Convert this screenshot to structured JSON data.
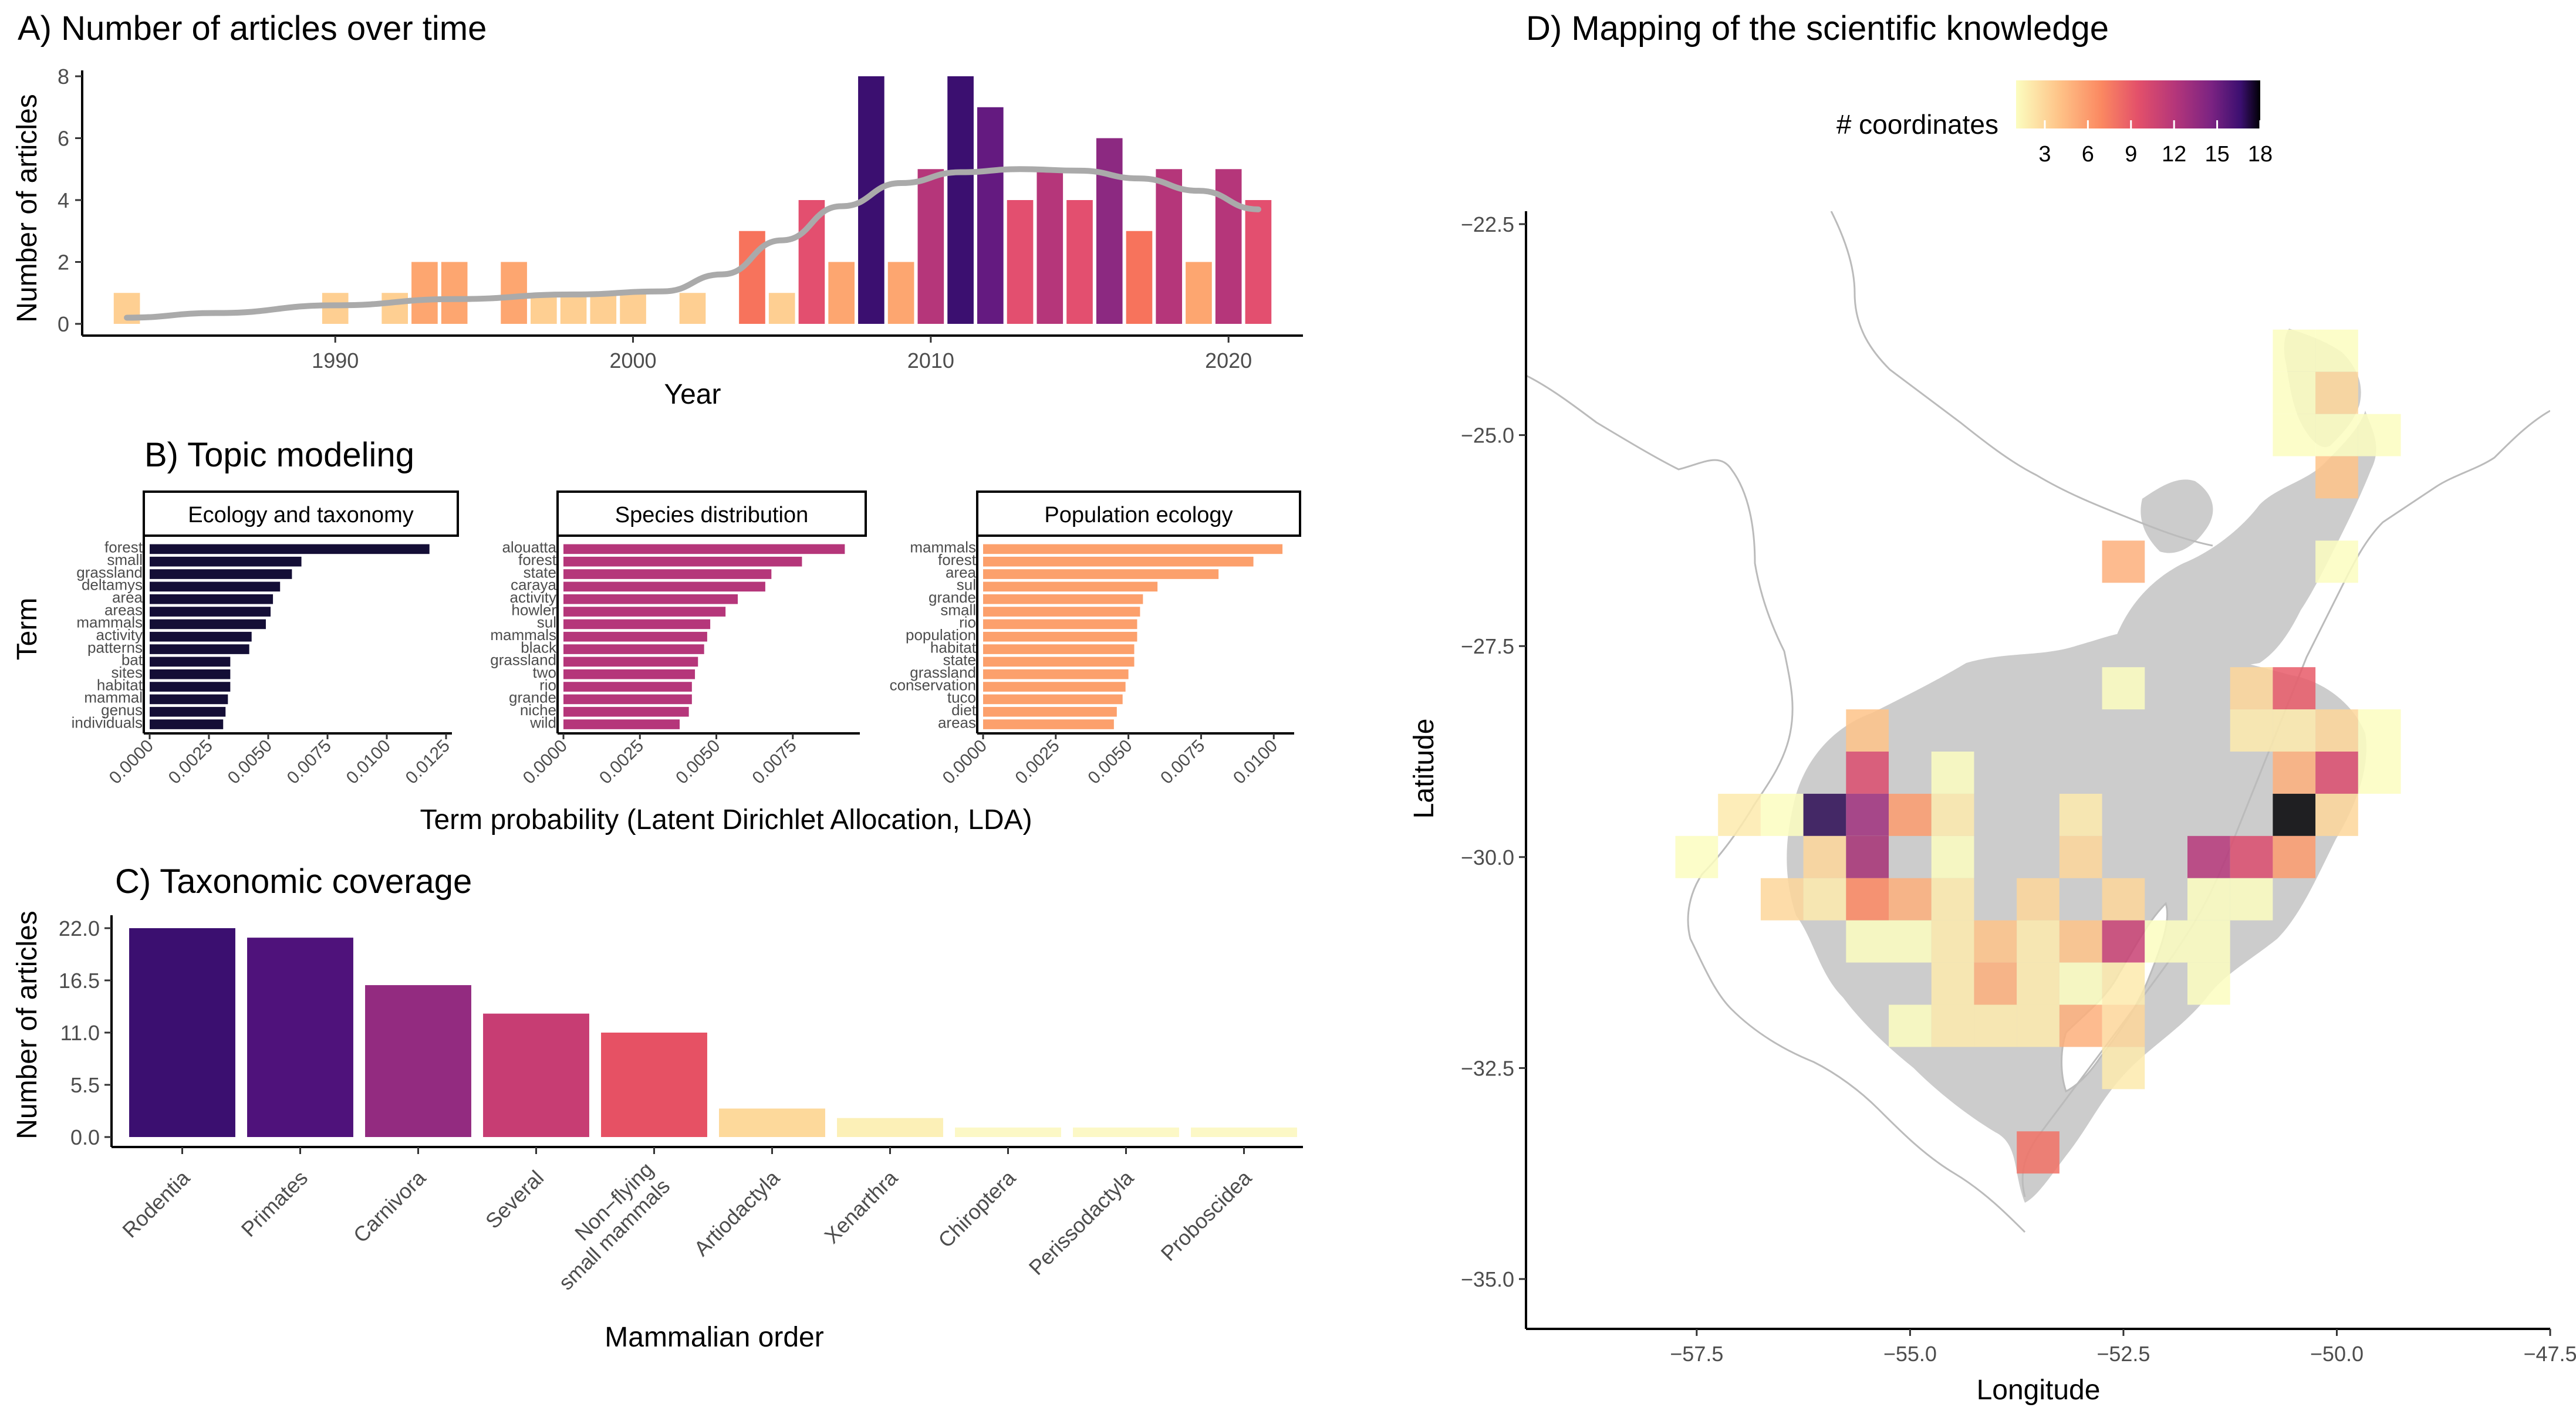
{
  "panels": {
    "A": {
      "title": "A) Number of articles over time",
      "chart_data": {
        "type": "bar",
        "xlabel": "Year",
        "ylabel": "Number of articles",
        "xlim": [
          1981.5,
          2022.5
        ],
        "ylim": [
          0,
          8
        ],
        "yticks": [
          0,
          2,
          4,
          6,
          8
        ],
        "xticks": [
          1990,
          2000,
          2010,
          2020
        ],
        "bars": [
          {
            "x": 1983,
            "y": 1,
            "color": "#FECF92"
          },
          {
            "x": 1990,
            "y": 1,
            "color": "#FECF92"
          },
          {
            "x": 1992,
            "y": 1,
            "color": "#FECF92"
          },
          {
            "x": 1993,
            "y": 2,
            "color": "#FDA670"
          },
          {
            "x": 1994,
            "y": 2,
            "color": "#FDA670"
          },
          {
            "x": 1996,
            "y": 2,
            "color": "#FDA670"
          },
          {
            "x": 1997,
            "y": 1,
            "color": "#FECF92"
          },
          {
            "x": 1998,
            "y": 1,
            "color": "#FECF92"
          },
          {
            "x": 1999,
            "y": 1,
            "color": "#FECF92"
          },
          {
            "x": 2000,
            "y": 1,
            "color": "#FECF92"
          },
          {
            "x": 2002,
            "y": 1,
            "color": "#FECF92"
          },
          {
            "x": 2004,
            "y": 3,
            "color": "#F7735C"
          },
          {
            "x": 2005,
            "y": 1,
            "color": "#FECF92"
          },
          {
            "x": 2006,
            "y": 4,
            "color": "#E34F6F"
          },
          {
            "x": 2007,
            "y": 2,
            "color": "#FDA670"
          },
          {
            "x": 2008,
            "y": 8,
            "color": "#3B0F70"
          },
          {
            "x": 2009,
            "y": 2,
            "color": "#FDA670"
          },
          {
            "x": 2010,
            "y": 5,
            "color": "#B5367A"
          },
          {
            "x": 2011,
            "y": 8,
            "color": "#3B0F70"
          },
          {
            "x": 2012,
            "y": 7,
            "color": "#641A80"
          },
          {
            "x": 2013,
            "y": 4,
            "color": "#E34F6F"
          },
          {
            "x": 2014,
            "y": 5,
            "color": "#B5367A"
          },
          {
            "x": 2015,
            "y": 4,
            "color": "#E34F6F"
          },
          {
            "x": 2016,
            "y": 6,
            "color": "#8C2981"
          },
          {
            "x": 2017,
            "y": 3,
            "color": "#F7735C"
          },
          {
            "x": 2018,
            "y": 5,
            "color": "#B5367A"
          },
          {
            "x": 2019,
            "y": 2,
            "color": "#FDA670"
          },
          {
            "x": 2020,
            "y": 5,
            "color": "#B5367A"
          },
          {
            "x": 2021,
            "y": 4,
            "color": "#E34F6F"
          }
        ],
        "trend": {
          "color": "#AAAAAA",
          "points": [
            [
              1983,
              0.2
            ],
            [
              1986,
              0.35
            ],
            [
              1990,
              0.6
            ],
            [
              1994,
              0.8
            ],
            [
              1998,
              0.95
            ],
            [
              2001,
              1.05
            ],
            [
              2003,
              1.6
            ],
            [
              2005,
              2.7
            ],
            [
              2007,
              3.8
            ],
            [
              2009,
              4.55
            ],
            [
              2011,
              4.9
            ],
            [
              2013,
              5.0
            ],
            [
              2015,
              4.95
            ],
            [
              2017,
              4.7
            ],
            [
              2019,
              4.3
            ],
            [
              2021,
              3.7
            ]
          ]
        }
      }
    },
    "B": {
      "title": "B) Topic modeling",
      "chart_data": {
        "type": "bar",
        "orientation": "horizontal",
        "xlabel": "Term probability (Latent Dirichlet Allocation, LDA)",
        "ylabel": "Term",
        "facets": [
          {
            "name": "Ecology and taxonomy",
            "color": "#140E36",
            "xlim": [
              0,
              0.0125
            ],
            "xticks": [
              "0.0000",
              "0.0025",
              "0.0050",
              "0.0075",
              "0.0100",
              "0.0125"
            ],
            "terms": [
              "forest",
              "small",
              "grassland",
              "deltamys",
              "area",
              "areas",
              "mammals",
              "activity",
              "patterns",
              "bat",
              "sites",
              "habitat",
              "mammal",
              "genus",
              "individuals"
            ],
            "values": [
              0.0118,
              0.0064,
              0.006,
              0.0055,
              0.0052,
              0.0051,
              0.0049,
              0.0043,
              0.0042,
              0.0034,
              0.0034,
              0.0034,
              0.0033,
              0.0032,
              0.0031
            ]
          },
          {
            "name": "Species distribution",
            "color": "#B5367A",
            "xlim": [
              0,
              0.0095
            ],
            "xticks": [
              "0.0000",
              "0.0025",
              "0.0050",
              "0.0075"
            ],
            "terms": [
              "alouatta",
              "forest",
              "state",
              "caraya",
              "activity",
              "howler",
              "sul",
              "mammals",
              "black",
              "grassland",
              "two",
              "rio",
              "grande",
              "niche",
              "wild"
            ],
            "values": [
              0.0092,
              0.0078,
              0.0068,
              0.0066,
              0.0057,
              0.0053,
              0.0048,
              0.0047,
              0.0046,
              0.0044,
              0.0043,
              0.0042,
              0.0042,
              0.0041,
              0.0038
            ]
          },
          {
            "name": "Population ecology",
            "color": "#FCA06C",
            "xlim": [
              0,
              0.0105
            ],
            "xticks": [
              "0.0000",
              "0.0025",
              "0.0050",
              "0.0075",
              "0.0100"
            ],
            "terms": [
              "mammals",
              "forest",
              "area",
              "sul",
              "grande",
              "small",
              "rio",
              "population",
              "habitat",
              "state",
              "grassland",
              "conservation",
              "tuco",
              "diet",
              "areas"
            ],
            "values": [
              0.0103,
              0.0093,
              0.0081,
              0.006,
              0.0055,
              0.0054,
              0.0053,
              0.0053,
              0.0052,
              0.0052,
              0.005,
              0.0049,
              0.0048,
              0.0046,
              0.0045
            ]
          }
        ]
      }
    },
    "C": {
      "title": "C) Taxonomic coverage",
      "chart_data": {
        "type": "bar",
        "xlabel": "Mammalian order",
        "ylabel": "Number of articles",
        "ylim": [
          0,
          22
        ],
        "yticks": [
          "0.0",
          "5.5",
          "11.0",
          "16.5",
          "22.0"
        ],
        "categories": [
          "Rodentia",
          "Primates",
          "Carnivora",
          "Several",
          "Non−flying|small mammals",
          "Artiodactyla",
          "Xenarthra",
          "Chiroptera",
          "Perissodactyla",
          "Proboscidea"
        ],
        "values": [
          22,
          21,
          16,
          13,
          11,
          3,
          2,
          1,
          1,
          1
        ],
        "colors": [
          "#3B0F70",
          "#4F127B",
          "#932B80",
          "#C73D73",
          "#E65164",
          "#FDD99B",
          "#FCF0B7",
          "#FCF8C6",
          "#FCF8C6",
          "#FCF8C6"
        ]
      }
    },
    "D": {
      "title": "D) Mapping of the scientific knowledge",
      "chart_data": {
        "type": "heatmap",
        "xlabel": "Longitude",
        "ylabel": "Latitude",
        "xlim": [
          -59.5,
          -47.5
        ],
        "ylim": [
          -35.6,
          -22.5
        ],
        "xticks": [
          "−57.5",
          "−55.0",
          "−52.5",
          "−50.0",
          "−47.5"
        ],
        "yticks": [
          "−22.5",
          "−25.0",
          "−27.5",
          "−30.0",
          "−32.5",
          "−35.0"
        ],
        "legend": {
          "title": "# coordinates",
          "ticks": [
            "3",
            "6",
            "9",
            "12",
            "15",
            "18"
          ],
          "placement": "top"
        },
        "cell_size_deg": 0.5,
        "cells": [
          [
            -50.5,
            -24,
            1
          ],
          [
            -50,
            -24,
            1
          ],
          [
            -50.5,
            -24.5,
            1
          ],
          [
            -50,
            -24.5,
            3
          ],
          [
            -50.5,
            -25,
            1
          ],
          [
            -50,
            -25,
            1
          ],
          [
            -49.5,
            -25,
            1
          ],
          [
            -50,
            -25.5,
            4
          ],
          [
            -50,
            -26.5,
            1
          ],
          [
            -52.5,
            -26.5,
            5
          ],
          [
            -52.5,
            -28,
            1
          ],
          [
            -51,
            -28,
            3
          ],
          [
            -50.5,
            -28,
            9
          ],
          [
            -55.5,
            -28.5,
            4
          ],
          [
            -51,
            -28.5,
            2
          ],
          [
            -50.5,
            -28.5,
            2
          ],
          [
            -50,
            -28.5,
            3
          ],
          [
            -49.5,
            -28.5,
            1
          ],
          [
            -55.5,
            -29,
            10
          ],
          [
            -54.5,
            -29,
            1
          ],
          [
            -50.5,
            -29,
            5
          ],
          [
            -50,
            -29,
            10
          ],
          [
            -49.5,
            -29,
            1
          ],
          [
            -57,
            -29.5,
            2
          ],
          [
            -56.5,
            -29.5,
            1
          ],
          [
            -56,
            -29.5,
            17
          ],
          [
            -55.5,
            -29.5,
            13
          ],
          [
            -55,
            -29.5,
            6
          ],
          [
            -54.5,
            -29.5,
            2
          ],
          [
            -53,
            -29.5,
            2
          ],
          [
            -50.5,
            -29.5,
            18
          ],
          [
            -50,
            -29.5,
            3
          ],
          [
            -57.5,
            -30,
            1
          ],
          [
            -55.5,
            -30,
            3
          ],
          [
            -56,
            -30,
            3
          ],
          [
            -55.5,
            -30,
            13
          ],
          [
            -54.5,
            -30,
            1
          ],
          [
            -53,
            -30,
            3
          ],
          [
            -51.5,
            -30,
            12
          ],
          [
            -51,
            -30,
            10
          ],
          [
            -50.5,
            -30,
            6
          ],
          [
            -56.5,
            -30.5,
            3
          ],
          [
            -56,
            -30.5,
            2
          ],
          [
            -55.5,
            -30.5,
            7
          ],
          [
            -55,
            -30.5,
            5
          ],
          [
            -54.5,
            -30.5,
            2
          ],
          [
            -53.5,
            -30.5,
            3
          ],
          [
            -52.5,
            -30.5,
            3
          ],
          [
            -51.5,
            -30.5,
            1
          ],
          [
            -51,
            -30.5,
            1
          ],
          [
            -55.5,
            -31,
            1
          ],
          [
            -55,
            -31,
            1
          ],
          [
            -54.5,
            -31,
            2
          ],
          [
            -54,
            -31,
            4
          ],
          [
            -53.5,
            -31,
            2
          ],
          [
            -53,
            -31,
            4
          ],
          [
            -52.5,
            -31,
            11
          ],
          [
            -52,
            -31,
            1
          ],
          [
            -51.5,
            -31,
            1
          ],
          [
            -54.5,
            -31.5,
            2
          ],
          [
            -54,
            -31.5,
            5
          ],
          [
            -53.5,
            -31.5,
            2
          ],
          [
            -53,
            -31.5,
            1
          ],
          [
            -52.5,
            -31.5,
            2
          ],
          [
            -51.5,
            -31.5,
            1
          ],
          [
            -55,
            -32,
            1
          ],
          [
            -54.5,
            -32,
            2
          ],
          [
            -54,
            -32,
            2
          ],
          [
            -53.5,
            -32,
            2
          ],
          [
            -53,
            -32,
            5
          ],
          [
            -52.5,
            -32,
            3
          ],
          [
            -52.5,
            -32.5,
            2
          ],
          [
            -53.5,
            -33.5,
            8
          ]
        ]
      }
    }
  }
}
